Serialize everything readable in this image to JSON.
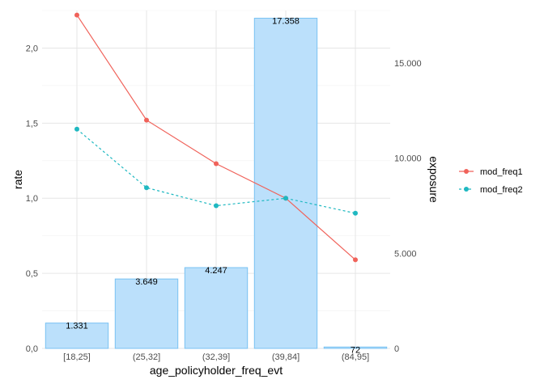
{
  "chart_data": {
    "type": "bar",
    "overlay": "line",
    "categories": [
      "[18,25]",
      "(25,32]",
      "(32,39]",
      "(39,84]",
      "(84,95]"
    ],
    "bars": {
      "axis": "right",
      "values": [
        1331,
        3649,
        4247,
        17358,
        72
      ],
      "labels": [
        "1.331",
        "3.649",
        "4.247",
        "17.358",
        "72"
      ],
      "fill": "#bbe0fb",
      "stroke": "#78c2f3"
    },
    "series": [
      {
        "name": "mod_freq1",
        "values": [
          2.22,
          1.52,
          1.23,
          1.0,
          0.59
        ],
        "color": "#f0625a",
        "linetype": "solid"
      },
      {
        "name": "mod_freq2",
        "values": [
          1.46,
          1.07,
          0.95,
          1.0,
          0.9
        ],
        "color": "#1fb8c1",
        "linetype": "dashed"
      }
    ],
    "xlabel": "age_policyholder_freq_evt",
    "ylabel": "rate",
    "y2label": "exposure",
    "ylim": [
      0,
      2.25
    ],
    "y2lim": [
      0,
      17763
    ],
    "yticks": [
      0,
      0.5,
      1.0,
      1.5,
      2.0
    ],
    "yticklabels": [
      "0,0",
      "0,5",
      "1,0",
      "1,5",
      "2,0"
    ],
    "y2ticks": [
      0,
      5000,
      10000,
      15000
    ],
    "y2ticklabels": [
      "0",
      "5.000",
      "10.000",
      "15.000"
    ],
    "grid": true,
    "legend_position": "right"
  }
}
